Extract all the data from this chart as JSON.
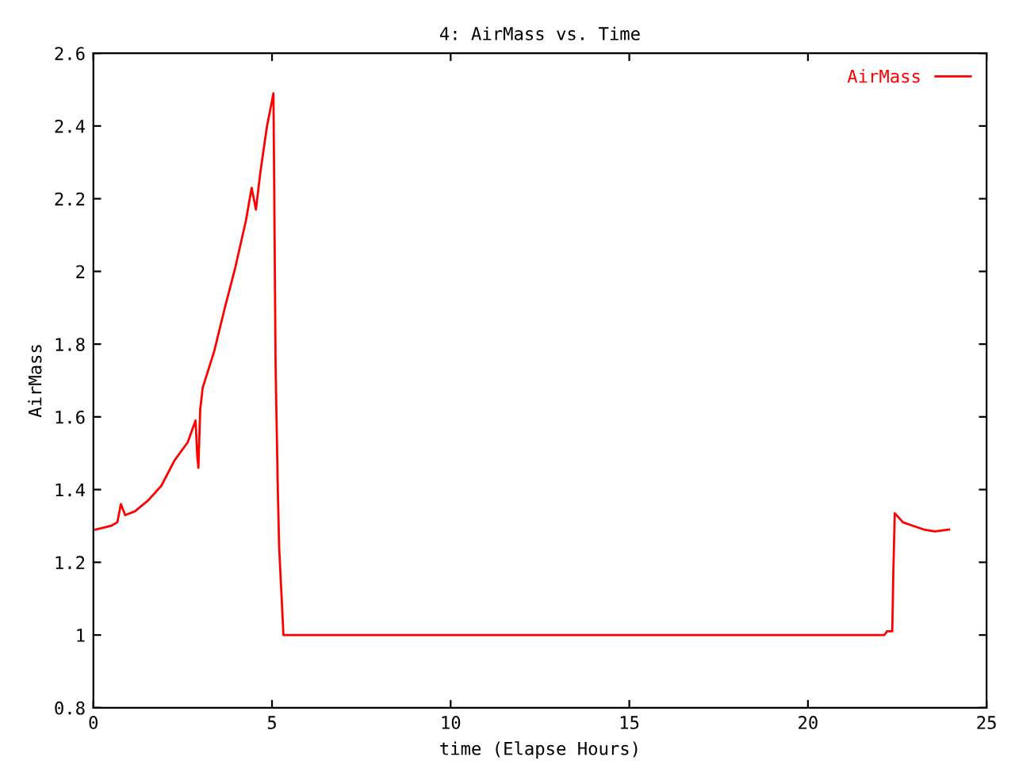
{
  "chart_data": {
    "type": "line",
    "title": "4: AirMass vs. Time",
    "xlabel": "time (Elapse Hours)",
    "ylabel": "AirMass",
    "xlim": [
      0,
      25
    ],
    "xticks": [
      0,
      5,
      10,
      15,
      20,
      25
    ],
    "ylim": [
      0.8,
      2.6
    ],
    "yticks": [
      0.8,
      1,
      1.2,
      1.4,
      1.6,
      1.8,
      2,
      2.2,
      2.4,
      2.6
    ],
    "grid": false,
    "legend": "top right",
    "series": [
      {
        "name": "AirMass",
        "color": "#ff0000",
        "x": [
          0.06,
          0.49,
          0.67,
          0.77,
          0.89,
          1.16,
          1.53,
          1.9,
          2.27,
          2.64,
          2.86,
          2.91,
          2.94,
          2.99,
          3.06,
          3.38,
          3.68,
          3.97,
          4.27,
          4.43,
          4.55,
          4.67,
          4.86,
          5.04,
          5.06,
          5.1,
          5.16,
          5.2,
          5.26,
          5.32,
          22.14,
          22.21,
          22.36,
          22.39,
          22.43,
          22.66,
          22.95,
          23.25,
          23.55,
          23.95
        ],
        "values": [
          1.29,
          1.3,
          1.31,
          1.36,
          1.33,
          1.34,
          1.37,
          1.41,
          1.48,
          1.53,
          1.59,
          1.49,
          1.46,
          1.62,
          1.68,
          1.78,
          1.9,
          2.01,
          2.14,
          2.23,
          2.17,
          2.27,
          2.4,
          2.49,
          2.25,
          1.74,
          1.41,
          1.24,
          1.12,
          1.0,
          1.0,
          1.01,
          1.01,
          1.17,
          1.335,
          1.31,
          1.3,
          1.29,
          1.285,
          1.29
        ]
      }
    ]
  }
}
